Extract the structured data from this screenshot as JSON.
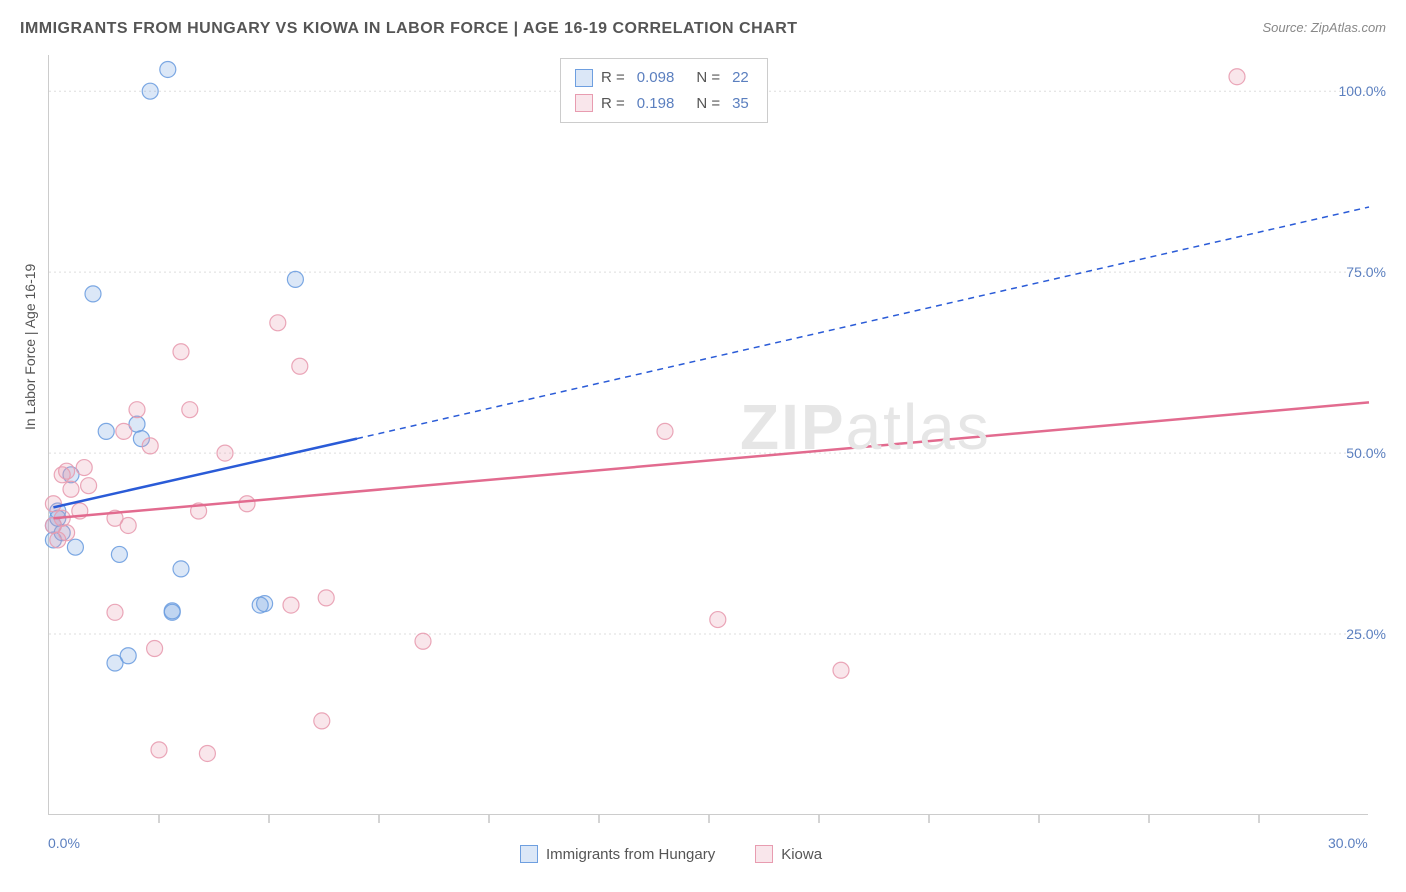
{
  "title": "IMMIGRANTS FROM HUNGARY VS KIOWA IN LABOR FORCE | AGE 16-19 CORRELATION CHART",
  "source": "Source: ZipAtlas.com",
  "y_axis_label": "In Labor Force | Age 16-19",
  "watermark": "ZIPatlas",
  "chart": {
    "type": "scatter",
    "background_color": "#ffffff",
    "grid_color": "#dddddd",
    "axis_color": "#cccccc",
    "tick_color": "#aaaaaa",
    "label_color": "#5b7fbf",
    "text_color": "#555555",
    "xlim": [
      0,
      30
    ],
    "ylim": [
      0,
      105
    ],
    "x_tick_labels": [
      {
        "value": 0,
        "label": "0.0%"
      },
      {
        "value": 30,
        "label": "30.0%"
      }
    ],
    "x_minor_ticks": [
      2.5,
      5,
      7.5,
      10,
      12.5,
      15,
      17.5,
      20,
      22.5,
      25,
      27.5
    ],
    "y_ticks": [
      {
        "value": 25,
        "label": "25.0%"
      },
      {
        "value": 50,
        "label": "50.0%"
      },
      {
        "value": 75,
        "label": "75.0%"
      },
      {
        "value": 100,
        "label": "100.0%"
      }
    ],
    "marker_radius": 8,
    "marker_fill_opacity": 0.25,
    "marker_stroke_opacity": 0.9,
    "line_width": 2.5,
    "series": [
      {
        "id": "hungary",
        "label": "Immigrants from Hungary",
        "color": "#6e9fe0",
        "line_color": "#2a5bd7",
        "r": "0.098",
        "n": "22",
        "trend_solid": [
          [
            0.1,
            42.5
          ],
          [
            7,
            52
          ]
        ],
        "trend_dashed": [
          [
            7,
            52
          ],
          [
            30,
            84
          ]
        ],
        "points": [
          [
            0.1,
            40
          ],
          [
            0.2,
            41
          ],
          [
            0.1,
            38
          ],
          [
            0.3,
            39
          ],
          [
            0.2,
            42
          ],
          [
            0.5,
            47
          ],
          [
            0.6,
            37
          ],
          [
            1.0,
            72
          ],
          [
            1.3,
            53
          ],
          [
            1.5,
            21
          ],
          [
            1.6,
            36
          ],
          [
            1.8,
            22
          ],
          [
            2.0,
            54
          ],
          [
            2.1,
            52
          ],
          [
            2.3,
            100
          ],
          [
            2.7,
            103
          ],
          [
            2.8,
            28
          ],
          [
            2.8,
            28.2
          ],
          [
            3.0,
            34
          ],
          [
            4.8,
            29
          ],
          [
            4.9,
            29.2
          ],
          [
            5.6,
            74
          ]
        ]
      },
      {
        "id": "kiowa",
        "label": "Kiowa",
        "color": "#e89cb0",
        "line_color": "#e26b8f",
        "r": "0.198",
        "n": "35",
        "trend_solid": [
          [
            0.1,
            41
          ],
          [
            30,
            57
          ]
        ],
        "trend_dashed": null,
        "points": [
          [
            0.1,
            40
          ],
          [
            0.1,
            43
          ],
          [
            0.2,
            38
          ],
          [
            0.3,
            47
          ],
          [
            0.3,
            41
          ],
          [
            0.4,
            47.5
          ],
          [
            0.4,
            39
          ],
          [
            0.5,
            45
          ],
          [
            0.7,
            42
          ],
          [
            0.8,
            48
          ],
          [
            0.9,
            45.5
          ],
          [
            1.5,
            41
          ],
          [
            1.5,
            28
          ],
          [
            1.7,
            53
          ],
          [
            1.8,
            40
          ],
          [
            2.0,
            56
          ],
          [
            2.3,
            51
          ],
          [
            2.4,
            23
          ],
          [
            2.5,
            9
          ],
          [
            3.0,
            64
          ],
          [
            3.2,
            56
          ],
          [
            3.4,
            42
          ],
          [
            3.6,
            8.5
          ],
          [
            4.0,
            50
          ],
          [
            4.5,
            43
          ],
          [
            5.2,
            68
          ],
          [
            5.5,
            29
          ],
          [
            5.7,
            62
          ],
          [
            6.2,
            13
          ],
          [
            6.3,
            30
          ],
          [
            8.5,
            24
          ],
          [
            14.0,
            53
          ],
          [
            15.2,
            27
          ],
          [
            18.0,
            20
          ],
          [
            27.0,
            102
          ]
        ]
      }
    ]
  },
  "legend": {
    "r_label": "R =",
    "n_label": "N ="
  }
}
